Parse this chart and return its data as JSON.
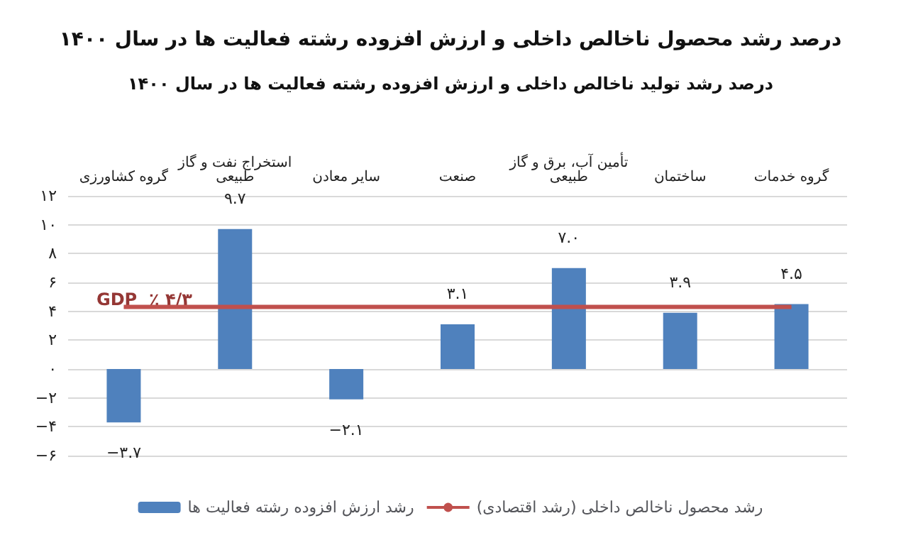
{
  "chart_data": {
    "type": "bar",
    "title": "درصد رشد محصول ناخالص داخلی و ارزش افزوده رشته فعالیت ها در سال ۱۴۰۰",
    "subtitle": "درصد رشد تولید ناخالص داخلی و ارزش افزوده رشته فعالیت ها در سال ۱۴۰۰",
    "categories": [
      "گروه کشاورزی",
      "استخراج نفت و گاز\nطبیعی",
      "سایر معادن",
      "صنعت",
      "تأمین آب، برق و گاز\nطبیعی",
      "ساختمان",
      "گروه خدمات"
    ],
    "series": [
      {
        "name": "رشد ارزش افزوده رشته فعالیت ها",
        "color": "#4f81bd",
        "values": [
          -3.7,
          9.7,
          -2.1,
          3.1,
          7.0,
          3.9,
          4.5
        ],
        "value_labels": [
          "−۳.۷",
          "۹.۷",
          "−۲.۱",
          "۳.۱",
          "۷.۰",
          "۳.۹",
          "۴.۵"
        ]
      },
      {
        "name": "رشد محصول ناخالص داخلی (رشد اقتصادی)",
        "type": "line",
        "color": "#c0504d",
        "values": [
          4.3,
          4.3,
          4.3,
          4.3,
          4.3,
          4.3,
          4.3
        ]
      }
    ],
    "annotations": [
      "GDP  ٪ ۴/۳"
    ],
    "ylim": [
      -6,
      12
    ],
    "yticks": [
      {
        "value": -6,
        "label": "−۶"
      },
      {
        "value": -4,
        "label": "−۴"
      },
      {
        "value": -2,
        "label": "−۲"
      },
      {
        "value": 0,
        "label": "۰"
      },
      {
        "value": 2,
        "label": "۲"
      },
      {
        "value": 4,
        "label": "۴"
      },
      {
        "value": 6,
        "label": "۶"
      },
      {
        "value": 8,
        "label": "۸"
      },
      {
        "value": 10,
        "label": "۱۰"
      },
      {
        "value": 12,
        "label": "۱۲"
      }
    ],
    "grid": "y",
    "legend": "bottom",
    "marker": "none"
  }
}
